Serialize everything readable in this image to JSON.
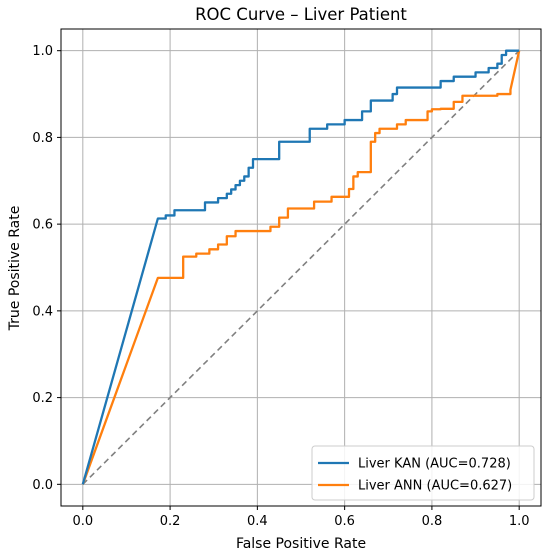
{
  "chart_data": {
    "type": "line",
    "title": "ROC Curve – Liver Patient",
    "xlabel": "False Positive Rate",
    "ylabel": "True Positive Rate",
    "xlim": [
      -0.05,
      1.05
    ],
    "ylim": [
      -0.05,
      1.05
    ],
    "xticks": [
      "0.0",
      "0.2",
      "0.4",
      "0.6",
      "0.8",
      "1.0"
    ],
    "yticks": [
      "0.0",
      "0.2",
      "0.4",
      "0.6",
      "0.8",
      "1.0"
    ],
    "grid": true,
    "legend_position": "lower-right",
    "colors": {
      "kan": "#1f77b4",
      "ann": "#ff7f0e",
      "diagonal": "#808080"
    },
    "series": [
      {
        "name": "Liver KAN (AUC=0.728)",
        "x": [
          0.0,
          0.172,
          0.19,
          0.19,
          0.21,
          0.21,
          0.28,
          0.28,
          0.31,
          0.31,
          0.33,
          0.33,
          0.34,
          0.34,
          0.35,
          0.35,
          0.36,
          0.36,
          0.37,
          0.37,
          0.38,
          0.38,
          0.39,
          0.39,
          0.45,
          0.45,
          0.52,
          0.52,
          0.56,
          0.56,
          0.6,
          0.6,
          0.64,
          0.64,
          0.66,
          0.66,
          0.71,
          0.71,
          0.72,
          0.72,
          0.82,
          0.82,
          0.85,
          0.85,
          0.9,
          0.9,
          0.93,
          0.93,
          0.95,
          0.95,
          0.96,
          0.96,
          0.97,
          0.97,
          1.0
        ],
        "y": [
          0.0,
          0.613,
          0.613,
          0.62,
          0.62,
          0.632,
          0.632,
          0.65,
          0.65,
          0.66,
          0.66,
          0.67,
          0.67,
          0.68,
          0.68,
          0.69,
          0.69,
          0.7,
          0.7,
          0.71,
          0.71,
          0.73,
          0.73,
          0.75,
          0.75,
          0.79,
          0.79,
          0.82,
          0.82,
          0.83,
          0.83,
          0.84,
          0.84,
          0.86,
          0.86,
          0.885,
          0.885,
          0.9,
          0.9,
          0.915,
          0.915,
          0.93,
          0.93,
          0.94,
          0.94,
          0.95,
          0.95,
          0.96,
          0.96,
          0.97,
          0.97,
          0.99,
          0.99,
          1.0,
          1.0
        ]
      },
      {
        "name": "Liver ANN (AUC=0.627)",
        "x": [
          0.0,
          0.172,
          0.23,
          0.23,
          0.26,
          0.26,
          0.29,
          0.29,
          0.31,
          0.31,
          0.33,
          0.33,
          0.35,
          0.35,
          0.35,
          0.35,
          0.37,
          0.37,
          0.43,
          0.43,
          0.44,
          0.44,
          0.45,
          0.45,
          0.47,
          0.47,
          0.53,
          0.53,
          0.55,
          0.55,
          0.57,
          0.57,
          0.61,
          0.61,
          0.62,
          0.62,
          0.63,
          0.63,
          0.66,
          0.66,
          0.67,
          0.67,
          0.68,
          0.68,
          0.7,
          0.7,
          0.72,
          0.72,
          0.74,
          0.74,
          0.76,
          0.76,
          0.79,
          0.79,
          0.8,
          0.8,
          0.81,
          0.81,
          0.82,
          0.82,
          0.85,
          0.85,
          0.87,
          0.87,
          0.9,
          0.9,
          0.95,
          0.95,
          0.98,
          0.98,
          1.0
        ],
        "y": [
          0.0,
          0.476,
          0.476,
          0.525,
          0.525,
          0.532,
          0.532,
          0.542,
          0.542,
          0.553,
          0.553,
          0.572,
          0.572,
          0.575,
          0.575,
          0.584,
          0.584,
          0.584,
          0.584,
          0.594,
          0.594,
          0.594,
          0.594,
          0.615,
          0.615,
          0.636,
          0.636,
          0.652,
          0.652,
          0.652,
          0.652,
          0.663,
          0.663,
          0.681,
          0.681,
          0.71,
          0.71,
          0.72,
          0.72,
          0.79,
          0.79,
          0.81,
          0.81,
          0.82,
          0.82,
          0.82,
          0.82,
          0.83,
          0.83,
          0.84,
          0.84,
          0.84,
          0.84,
          0.86,
          0.86,
          0.865,
          0.865,
          0.865,
          0.865,
          0.866,
          0.866,
          0.882,
          0.882,
          0.896,
          0.896,
          0.896,
          0.896,
          0.9,
          0.9,
          0.91,
          1.0
        ]
      }
    ],
    "reference_line": {
      "x": [
        0,
        1
      ],
      "y": [
        0,
        1
      ],
      "style": "dashed"
    }
  }
}
